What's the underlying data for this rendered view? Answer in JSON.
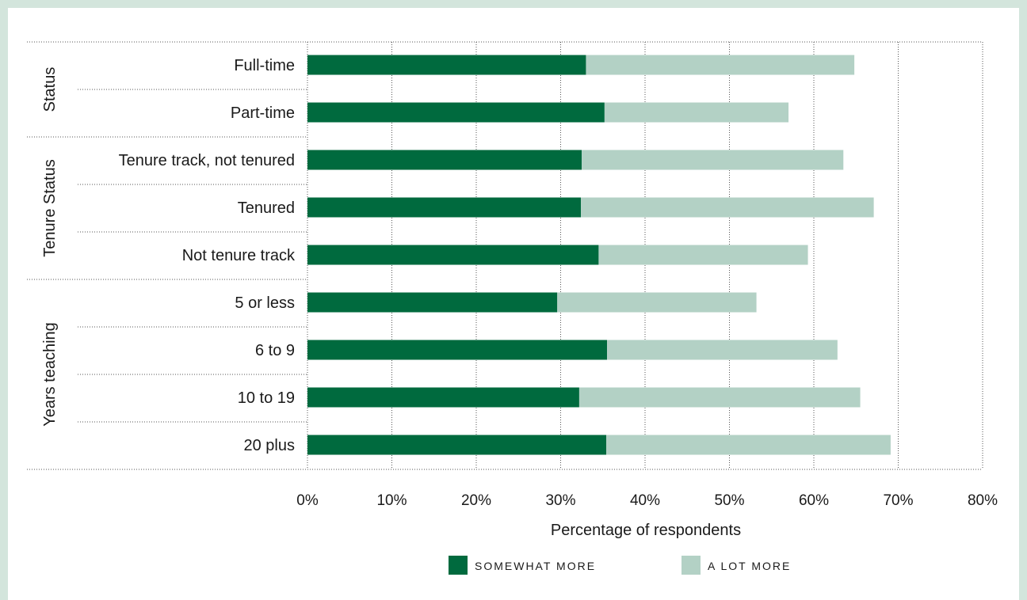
{
  "chart_data": {
    "type": "bar",
    "orientation": "horizontal",
    "stacked": true,
    "xlabel": "Percentage of respondents",
    "xlim": [
      0,
      80
    ],
    "x_ticks": [
      "0%",
      "10%",
      "20%",
      "30%",
      "40%",
      "50%",
      "60%",
      "70%",
      "80%"
    ],
    "grid": true,
    "legend_position": "bottom",
    "groups": [
      {
        "name": "Status",
        "categories": [
          "Full-time",
          "Part-time"
        ]
      },
      {
        "name": "Tenure Status",
        "categories": [
          "Tenure track, not tenured",
          "Tenured",
          "Not tenure track"
        ]
      },
      {
        "name": "Years teaching",
        "categories": [
          "5 or less",
          "6 to 9",
          "10 to 19",
          "20 plus"
        ]
      }
    ],
    "categories": [
      "Full-time",
      "Part-time",
      "Tenure track, not tenured",
      "Tenured",
      "Not tenure track",
      "5 or less",
      "6 to 9",
      "10 to 19",
      "20 plus"
    ],
    "series": [
      {
        "name": "SOMEWHAT MORE",
        "color": "#006a3e",
        "values": [
          33.0,
          35.2,
          32.5,
          32.4,
          34.5,
          29.6,
          35.5,
          32.2,
          35.4
        ]
      },
      {
        "name": "A LOT MORE",
        "color": "#b3d1c5",
        "values": [
          31.8,
          21.8,
          31.0,
          34.7,
          24.8,
          23.6,
          27.3,
          33.3,
          33.7
        ]
      }
    ]
  }
}
